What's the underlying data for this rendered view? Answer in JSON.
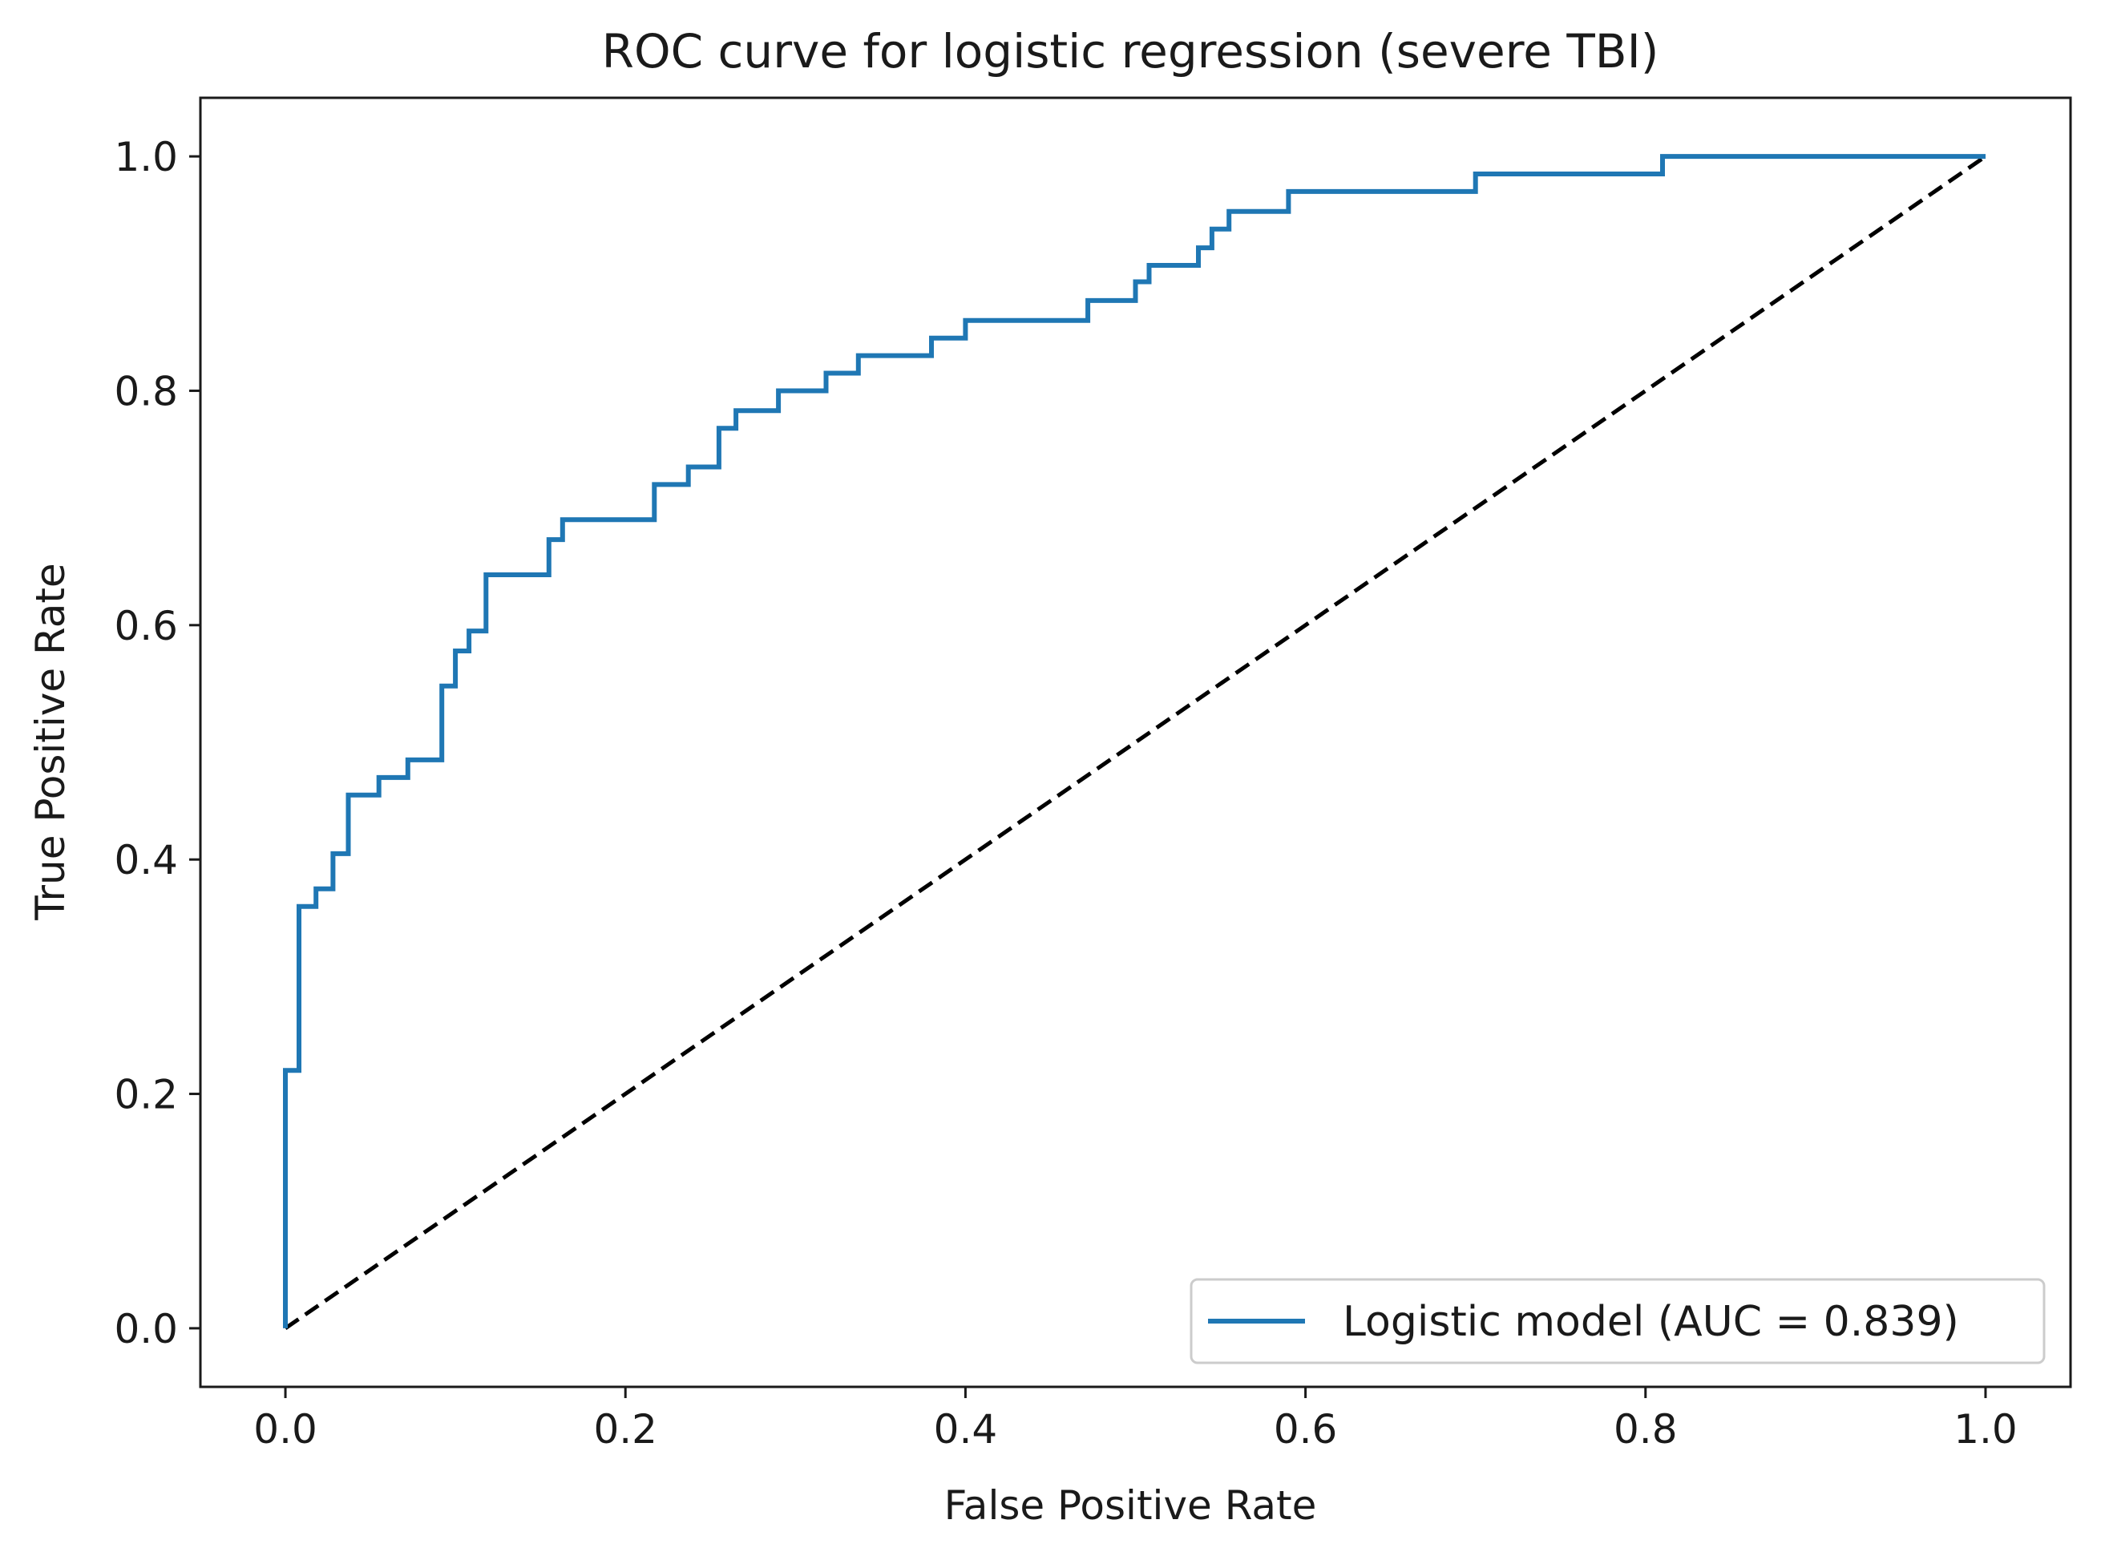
{
  "chart_data": {
    "type": "line",
    "title": "ROC curve for logistic regression (severe TBI)",
    "xlabel": "False Positive Rate",
    "ylabel": "True Positive Rate",
    "xlim": [
      -0.05,
      1.05
    ],
    "ylim": [
      -0.05,
      1.05
    ],
    "xticks": [
      0.0,
      0.2,
      0.4,
      0.6,
      0.8,
      1.0
    ],
    "xtick_labels": [
      "0.0",
      "0.2",
      "0.4",
      "0.6",
      "0.8",
      "1.0"
    ],
    "yticks": [
      0.0,
      0.2,
      0.4,
      0.6,
      0.8,
      1.0
    ],
    "ytick_labels": [
      "0.0",
      "0.2",
      "0.4",
      "0.6",
      "0.8",
      "1.0"
    ],
    "grid": false,
    "legend_position": "lower-right",
    "series": [
      {
        "name": "Logistic model (AUC = 0.839)",
        "color": "#1f77b4",
        "style": "solid",
        "x": [
          0.0,
          0.0,
          0.008,
          0.008,
          0.018,
          0.018,
          0.028,
          0.028,
          0.037,
          0.037,
          0.055,
          0.055,
          0.072,
          0.072,
          0.092,
          0.092,
          0.1,
          0.1,
          0.108,
          0.108,
          0.118,
          0.118,
          0.155,
          0.155,
          0.163,
          0.163,
          0.217,
          0.217,
          0.237,
          0.237,
          0.255,
          0.255,
          0.265,
          0.265,
          0.29,
          0.29,
          0.318,
          0.318,
          0.337,
          0.337,
          0.38,
          0.38,
          0.4,
          0.4,
          0.472,
          0.472,
          0.5,
          0.5,
          0.508,
          0.508,
          0.537,
          0.537,
          0.545,
          0.545,
          0.555,
          0.555,
          0.59,
          0.59,
          0.7,
          0.7,
          0.81,
          0.81,
          1.0
        ],
        "y": [
          0.0,
          0.22,
          0.22,
          0.36,
          0.36,
          0.375,
          0.375,
          0.405,
          0.405,
          0.455,
          0.455,
          0.47,
          0.47,
          0.485,
          0.485,
          0.548,
          0.548,
          0.578,
          0.578,
          0.595,
          0.595,
          0.643,
          0.643,
          0.673,
          0.673,
          0.69,
          0.69,
          0.72,
          0.72,
          0.735,
          0.735,
          0.768,
          0.768,
          0.783,
          0.783,
          0.8,
          0.8,
          0.815,
          0.815,
          0.83,
          0.83,
          0.845,
          0.845,
          0.86,
          0.86,
          0.877,
          0.877,
          0.893,
          0.893,
          0.907,
          0.907,
          0.922,
          0.922,
          0.938,
          0.938,
          0.953,
          0.953,
          0.97,
          0.97,
          0.985,
          0.985,
          1.0,
          1.0
        ]
      },
      {
        "name": "",
        "color": "#000000",
        "style": "dashed",
        "x": [
          0.0,
          1.0
        ],
        "y": [
          0.0,
          1.0
        ]
      }
    ]
  }
}
